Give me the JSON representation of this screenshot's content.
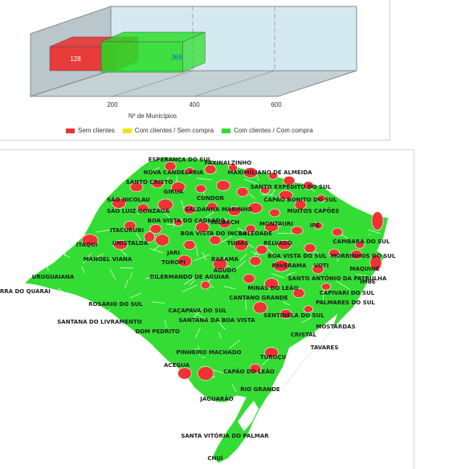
{
  "chart": {
    "axis_title": "Nº de Municípios",
    "ticks": [
      "200",
      "400",
      "600"
    ],
    "legend": [
      {
        "label": "Sem clientes",
        "color": "#ee3333"
      },
      {
        "label": "Com clientes / Sem compra",
        "color": "#f3e300"
      },
      {
        "label": "Com clientes / Com compra",
        "color": "#33dd33"
      }
    ]
  },
  "chart_data": {
    "type": "bar",
    "series": [
      {
        "name": "Sem clientes",
        "value": 128
      },
      {
        "name": "Com clientes / Com compra",
        "value": 369
      }
    ],
    "value_labels": [
      "128",
      "369"
    ],
    "xlim": [
      0,
      600
    ]
  },
  "map": {
    "colors": {
      "land": "#33dd33",
      "red": "#ee3333",
      "border": "#ffffff"
    },
    "cities": [
      "ESPERANÇA DO SUL",
      "FAXINALZINHO",
      "NOVA CANDELÁRIA",
      "MAXIMILIANO DE ALMEIDA",
      "SANTO CRISTO",
      "SANTO EXPEDITO DO SUL",
      "GIRUA",
      "CONDOR",
      "CAPÃO BONITO DO SUL",
      "SÃO NICOLAU",
      "SALDANHA MARINHO",
      "MUITOS CAPÕES",
      "SÃO LUIZ GONZAGA",
      "BOA VISTA DO CADEADO",
      "SELBACH",
      "MONTAURI",
      "IPÊ",
      "ITACURUBI",
      "BOA VISTA DO INCRA",
      "SOLEDADE",
      "CAMBARÁ DO SUL",
      "ITAQUI",
      "UNISTALDA",
      "TUNAS",
      "RELVADO",
      "JARI",
      "BOA VISTA DO SUL",
      "MORRINHOS DO SUL",
      "MANOEL VIANA",
      "TOROPI",
      "BARAMA",
      "PAVERAMA",
      "VOTI",
      "MAQUINÉ",
      "AGUDO",
      "SANTO ANTÔNIO DA PATRULHA",
      "URUGUAIANA",
      "DILERMANDO DE AGUIAR",
      "IMBÉ",
      "BARRA DO QUARAI",
      "MINAS DO LEÃO",
      "CAPIVARI DO SUL",
      "CANTANO GRANDE",
      "ROSÁRIO DO SUL",
      "PALMARES DO SUL",
      "CAÇAPAVA DO SUL",
      "SENTINELA DO SUL",
      "SANTANA DO LIVRAMENTO",
      "SANTANA DA BOA VISTA",
      "MOSTARDAS",
      "DOM PEDRITO",
      "CRISTAL",
      "TAVARES",
      "PINHEIRO MACHADO",
      "TURUÇU",
      "ACEGUA",
      "CAPÃO DO LEÃO",
      "RIO GRANDE",
      "JAGUARÃO",
      "SANTA VITÓRIA DO PALMAR",
      "CHUÍ"
    ]
  }
}
